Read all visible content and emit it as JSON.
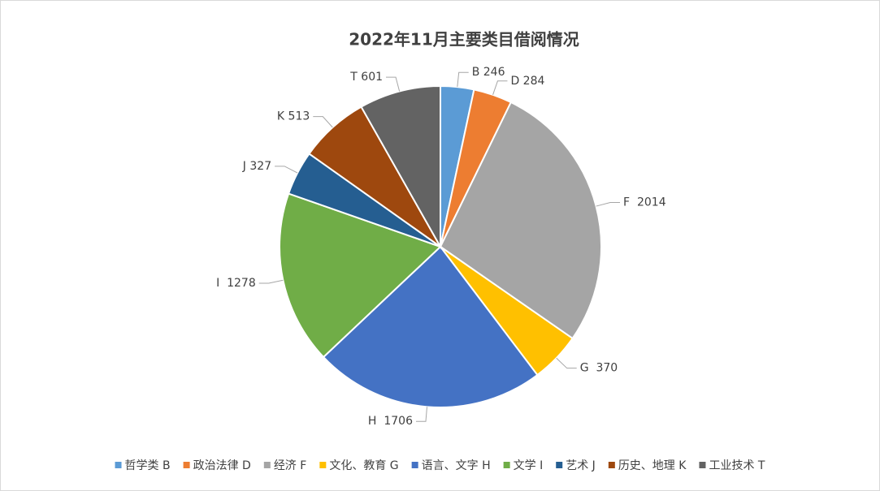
{
  "chart_data": {
    "type": "pie",
    "title": "2022年11月主要类目借阅情况",
    "categories": [
      "哲学类 B",
      "政治法律 D",
      "经济 F",
      "文化、教育 G",
      "语言、文字 H",
      "文学 I",
      "艺术 J",
      "历史、地理 K",
      "工业技术 T"
    ],
    "values": [
      246,
      284,
      2014,
      370,
      1706,
      1278,
      327,
      513,
      601
    ],
    "value_labels": [
      "B 246",
      "D 284",
      "F  2014",
      "G  370",
      "H  1706",
      "I  1278",
      "J 327",
      "K 513",
      "T 601"
    ],
    "colors": [
      "#5b9bd5",
      "#ed7d31",
      "#a5a5a5",
      "#ffc000",
      "#4472c4",
      "#70ad47",
      "#255e91",
      "#9e480e",
      "#636363"
    ],
    "legend": "bottom"
  }
}
